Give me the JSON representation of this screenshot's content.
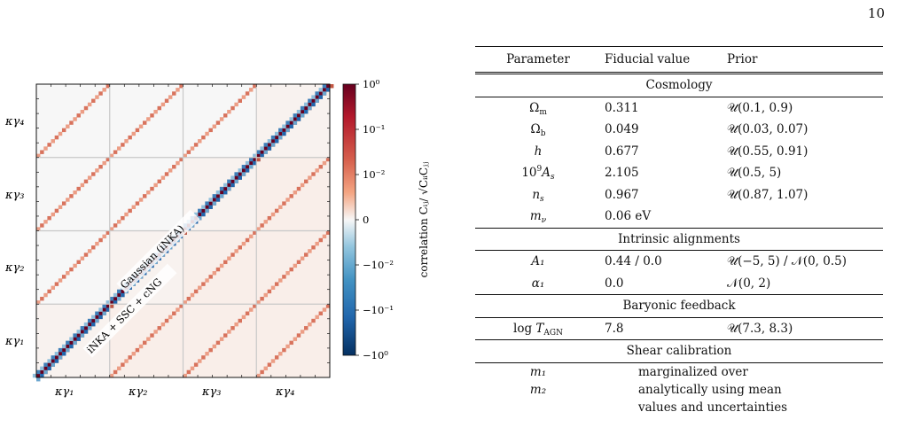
{
  "page_number": "10",
  "figure": {
    "row_labels": [
      "κγ₄",
      "κγ₃",
      "κγ₂",
      "κγ₁"
    ],
    "col_labels": [
      "κγ₁",
      "κγ₂",
      "κγ₃",
      "κγ₄"
    ],
    "upper_triangle_label": "Gaussian (iNKA)",
    "lower_triangle_label": "iNKA + SSC + cNG",
    "colorbar": {
      "ticks": [
        "10⁰",
        "10⁻¹",
        "10⁻²",
        "0",
        "−10⁻²",
        "−10⁻¹",
        "−10⁰"
      ],
      "label": "correlation  Cᵢⱼ/ √CᵢᵢCⱼⱼ"
    },
    "colors": {
      "pos": "#67001f",
      "neg": "#053061",
      "mid": "#f7f7f7",
      "grid": "#c8c8c8"
    }
  },
  "table": {
    "headers": [
      "Parameter",
      "Fiducial value",
      "Prior"
    ],
    "sections": [
      {
        "title": "Cosmology",
        "rows": [
          [
            "Ωm",
            "0.311",
            "𝒰(0.1, 0.9)"
          ],
          [
            "Ωb",
            "0.049",
            "𝒰(0.03, 0.07)"
          ],
          [
            "h",
            "0.677",
            "𝒰(0.55, 0.91)"
          ],
          [
            "10⁹As",
            "2.105",
            "𝒰(0.5, 5)"
          ],
          [
            "ns",
            "0.967",
            "𝒰(0.87, 1.07)"
          ],
          [
            "mν",
            "0.06 eV",
            ""
          ]
        ]
      },
      {
        "title": "Intrinsic alignments",
        "rows": [
          [
            "A₁",
            "0.44 / 0.0",
            "𝒰(−5, 5) / 𝒩(0, 0.5)"
          ],
          [
            "α₁",
            "0.0",
            "𝒩(0, 2)"
          ]
        ]
      },
      {
        "title": "Baryonic feedback",
        "rows": [
          [
            "log TAGN",
            "7.8",
            "𝒰(7.3, 8.3)"
          ]
        ]
      },
      {
        "title": "Shear calibration",
        "rows": [
          [
            "m₁",
            "marginalized over",
            ""
          ],
          [
            "m₂",
            "analytically using mean",
            ""
          ],
          [
            "",
            "values and uncertainties",
            ""
          ]
        ]
      }
    ]
  }
}
